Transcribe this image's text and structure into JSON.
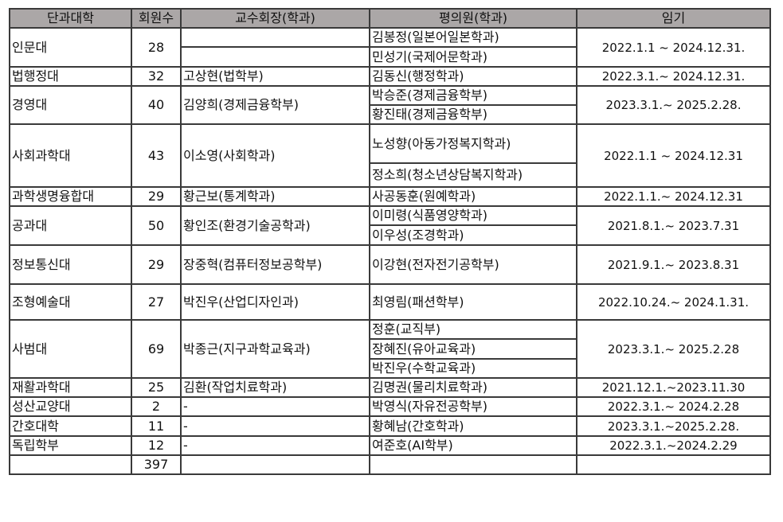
{
  "header": [
    "단과대학",
    "회원수",
    "교수회장(학과)",
    "평의원(학과)",
    "임기"
  ],
  "rows": [
    {
      "college": "인문대",
      "members": "28",
      "chair": [
        "",
        ""
      ],
      "councilors": [
        "김봉정(일본어일본학과)",
        "민성기(국제어문학과)"
      ],
      "term": "2022.1.1  ~  2024.12.31."
    },
    {
      "college": "법행정대",
      "members": "32",
      "chair": "고상현(법학부)",
      "councilors": [
        "김동신(행정학과)"
      ],
      "term": "2022.3.1.~  2024.12.31."
    },
    {
      "college": "경영대",
      "members": "40",
      "chair": "김양희(경제금융학부)",
      "councilors": [
        "박승준(경제금융학부)",
        "황진태(경제금융학부)"
      ],
      "term": "2023.3.1.~  2025.2.28."
    },
    {
      "college": "사회과학대",
      "members": "43",
      "chair": "이소영(사회학과)",
      "councilors": [
        "노성향(아동가정복지학과)",
        "정소희(청소년상담복지학과)"
      ],
      "term": "2022.1.1  ~  2024.12.31"
    },
    {
      "college": "과학생명융합대",
      "members": "29",
      "chair": "황근보(통계학과)",
      "councilors": [
        "사공동훈(원예학과)"
      ],
      "term": "2022.1.1.~  2024.12.31"
    },
    {
      "college": "공과대",
      "members": "50",
      "chair": "황인조(환경기술공학과)",
      "councilors": [
        "이미령(식품영양학과)",
        "이우성(조경학과)"
      ],
      "term": "2021.8.1.~  2023.7.31"
    },
    {
      "college": "정보통신대",
      "members": "29",
      "chair": "장중혁(컴퓨터정보공학부)",
      "councilors": [
        "이강현(전자전기공학부)"
      ],
      "term": "2021.9.1.~  2023.8.31"
    },
    {
      "college": "조형예술대",
      "members": "27",
      "chair": "박진우(산업디자인과)",
      "councilors": [
        "최영림(패션학부)"
      ],
      "term": "2022.10.24.~  2024.1.31."
    },
    {
      "college": "사범대",
      "members": "69",
      "chair": "박종근(지구과학교육과)",
      "councilors": [
        "정훈(교직부)",
        "장혜진(유아교육과)",
        "박진우(수학교육과)"
      ],
      "term": "2023.3.1.~  2025.2.28"
    },
    {
      "college": "재활과학대",
      "members": "25",
      "chair": "김환(작업치료학과)",
      "councilors": [
        "김명권(물리치료학과)"
      ],
      "term": "2021.12.1.~2023.11.30"
    },
    {
      "college": "성산교양대",
      "members": "2",
      "chair": "-",
      "councilors": [
        "박영식(자유전공학부)"
      ],
      "term": "2022.3.1.~  2024.2.28"
    },
    {
      "college": "간호대학",
      "members": "11",
      "chair": "-",
      "councilors": [
        "황혜남(간호학과)"
      ],
      "term": "2023.3.1.~2025.2.28."
    },
    {
      "college": "독립학부",
      "members": "12",
      "chair": "-",
      "councilors": [
        "여준호(AI학부)"
      ],
      "term": "2022.3.1.~2024.2.29"
    }
  ],
  "total": {
    "college": "",
    "members": "397",
    "chair": "",
    "councilors": "",
    "term": ""
  }
}
